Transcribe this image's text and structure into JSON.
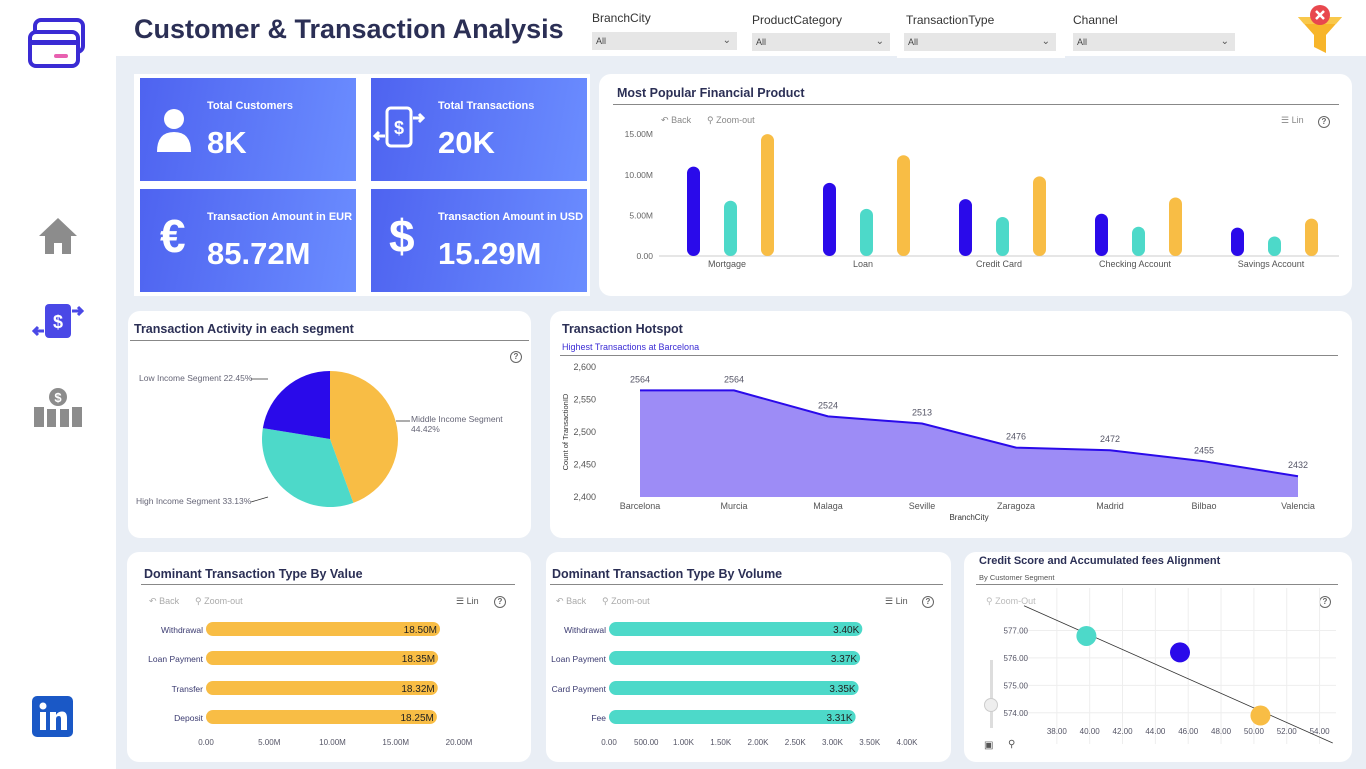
{
  "header": {
    "title": "Customer &  Transaction Analysis"
  },
  "filters": [
    {
      "label": "BranchCity",
      "value": "All"
    },
    {
      "label": "ProductCategory",
      "value": "All"
    },
    {
      "label": "TransactionType",
      "value": "All"
    },
    {
      "label": "Channel",
      "value": "All"
    }
  ],
  "kpis": [
    {
      "label": "Total Customers",
      "value": "8K",
      "icon": "user-icon"
    },
    {
      "label": "Total Transactions",
      "value": "20K",
      "icon": "mobile-transfer-icon"
    },
    {
      "label": "Transaction Amount in EUR",
      "value": "85.72M",
      "icon": "euro-icon"
    },
    {
      "label": "Transaction Amount in USD",
      "value": "15.29M",
      "icon": "dollar-icon"
    }
  ],
  "toolbar": {
    "back": "Back",
    "zoom_out": "Zoom-out",
    "zoom_out_alt": "Zoom-Out",
    "lin": "Lin",
    "help": "?"
  },
  "colors": {
    "kpi_start": "#4e63f0",
    "kpi_end": "#6b8dff",
    "blue": "#2a0aea",
    "teal": "#4dd9c9",
    "yellow": "#f8bd45",
    "area": "#9d8cf6"
  },
  "chart_data": [
    {
      "id": "product",
      "type": "bar",
      "title": "Most Popular Financial Product",
      "categories": [
        "Mortgage",
        "Loan",
        "Credit Card",
        "Checking Account",
        "Savings Account"
      ],
      "series": [
        {
          "values": [
            11.0,
            9.0,
            7.0,
            5.2,
            3.5
          ]
        },
        {
          "values": [
            6.8,
            5.8,
            4.8,
            3.6,
            2.4
          ]
        },
        {
          "values": [
            15.0,
            12.4,
            9.8,
            7.2,
            4.6
          ]
        }
      ],
      "yticks": [
        "0.00",
        "5.00M",
        "10.00M",
        "15.00M"
      ],
      "ylim": [
        0,
        16
      ]
    },
    {
      "id": "segment",
      "type": "pie",
      "title": "Transaction Activity in each segment",
      "slices": [
        {
          "label": "Middle Income Segment",
          "pct": "44.42%",
          "value": 44.42
        },
        {
          "label": "High Income Segment",
          "pct": "33.13%",
          "value": 33.13
        },
        {
          "label": "Low Income Segment",
          "pct": "22.45%",
          "value": 22.45
        }
      ]
    },
    {
      "id": "hotspot",
      "type": "area",
      "title": "Transaction Hotspot",
      "subtitle": "Highest Transactions at Barcelona",
      "xlabel": "BranchCity",
      "ylabel": "Count of TransactionID",
      "categories": [
        "Barcelona",
        "Murcia",
        "Malaga",
        "Seville",
        "Zaragoza",
        "Madrid",
        "Bilbao",
        "Valencia"
      ],
      "values": [
        2564,
        2564,
        2524,
        2513,
        2476,
        2472,
        2455,
        2432
      ],
      "yticks": [
        "2,400",
        "2,450",
        "2,500",
        "2,550",
        "2,600"
      ],
      "ylim": [
        2400,
        2600
      ]
    },
    {
      "id": "byvalue",
      "type": "bar",
      "title": "Dominant Transaction Type By Value",
      "categories": [
        "Withdrawal",
        "Loan Payment",
        "Transfer",
        "Deposit"
      ],
      "values": [
        18.5,
        18.35,
        18.32,
        18.25
      ],
      "labels": [
        "18.50M",
        "18.35M",
        "18.32M",
        "18.25M"
      ],
      "xticks": [
        "0.00",
        "5.00M",
        "10.00M",
        "15.00M",
        "20.00M"
      ],
      "xlim": [
        0,
        20
      ]
    },
    {
      "id": "byvolume",
      "type": "bar",
      "title": "Dominant Transaction Type By Volume",
      "categories": [
        "Withdrawal",
        "Loan Payment",
        "Card Payment",
        "Fee"
      ],
      "values": [
        3.4,
        3.37,
        3.35,
        3.31
      ],
      "labels": [
        "3.40K",
        "3.37K",
        "3.35K",
        "3.31K"
      ],
      "xticks": [
        "0.00",
        "500.00",
        "1.00K",
        "1.50K",
        "2.00K",
        "2.50K",
        "3.00K",
        "3.50K",
        "4.00K"
      ],
      "xlim": [
        0,
        4
      ]
    },
    {
      "id": "credit",
      "type": "scatter",
      "title": "Credit Score and Accumulated fees Alignment",
      "subtitle": "By Customer Segment",
      "points": [
        {
          "x": 39.8,
          "y": 576.8
        },
        {
          "x": 45.5,
          "y": 576.2
        },
        {
          "x": 50.4,
          "y": 573.9
        }
      ],
      "trend": [
        {
          "x": 36.0,
          "y": 577.9
        },
        {
          "x": 54.8,
          "y": 572.9
        }
      ],
      "xticks": [
        "38.00",
        "40.00",
        "42.00",
        "44.00",
        "46.00",
        "48.00",
        "50.00",
        "52.00",
        "54.00"
      ],
      "yticks": [
        "574.00",
        "575.00",
        "576.00",
        "577.00"
      ],
      "xlim": [
        36,
        55
      ],
      "ylim": [
        573.3,
        577.6
      ]
    }
  ]
}
